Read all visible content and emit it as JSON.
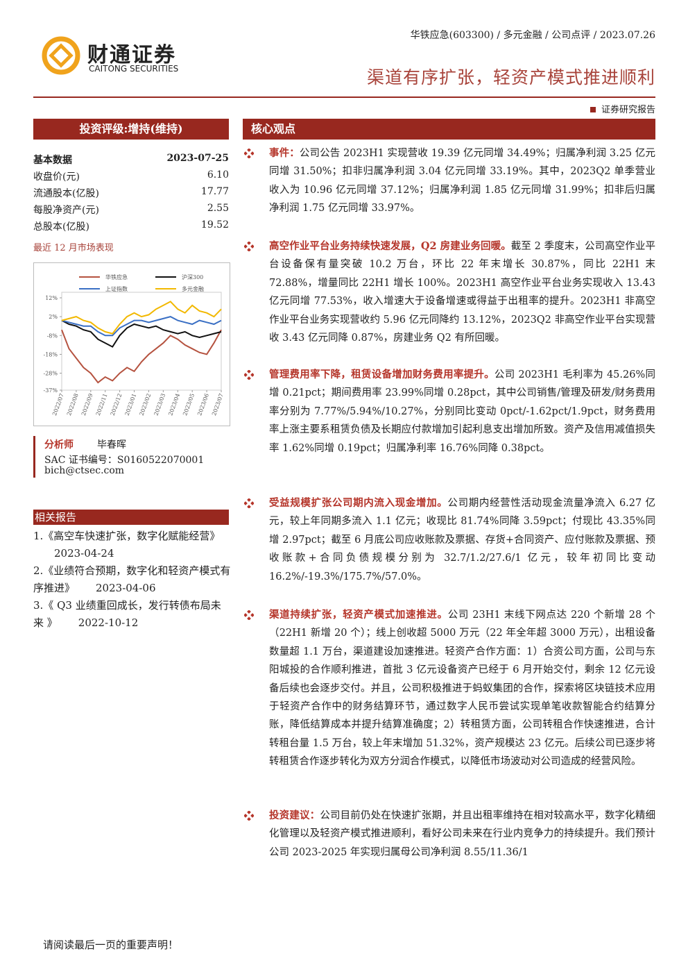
{
  "header": {
    "meta": "华铁应急(603300) / 多元金融 / 公司点评 / 2023.07.26",
    "title": "渠道有序扩张，轻资产模式推进顺利",
    "logo_cn": "财通证券",
    "logo_en": "CAITONG SECURITIES",
    "report_type": "证券研究报告"
  },
  "sidebar": {
    "rating": "投资评级:增持(维持)",
    "basic_data": {
      "title": "基本数据",
      "date": "2023-07-25",
      "rows": [
        [
          "收盘价(元)",
          "6.10"
        ],
        [
          "流通股本(亿股)",
          "17.77"
        ],
        [
          "每股净资产(元)",
          "2.55"
        ],
        [
          "总股本(亿股)",
          "19.52"
        ]
      ]
    },
    "chart_title": "最近 12 月市场表现",
    "analyst": {
      "label": "分析师",
      "name": "毕春晖",
      "sac": "SAC 证书编号：S0160522070001",
      "email": "bich@ctsec.com"
    },
    "related": {
      "title": "相关报告",
      "items": [
        {
          "title": "1.《高空车快速扩张，数字化赋能经营》",
          "date": "2023-04-24"
        },
        {
          "title": "2.《业绩符合预期，数字化和轻资产模式有序推进》",
          "date": "2023-04-06"
        },
        {
          "title": "3.《 Q3 业绩重回成长，发行转债布局未来 》",
          "date": "2022-10-12"
        }
      ]
    }
  },
  "chart_data": {
    "type": "line",
    "categories": [
      "2022/07",
      null,
      "2022/08",
      null,
      "2022/09",
      null,
      "2022/11",
      null,
      "2022/12",
      null,
      "2023/01",
      null,
      "2023/02",
      null,
      "2023/03",
      null,
      "2023/04",
      null,
      "2023/05",
      null,
      "2023/06",
      null,
      "2023/07"
    ],
    "series": [
      {
        "name": "华铁应急",
        "color": "#b5523f",
        "values": [
          -5,
          -15,
          -20,
          -25,
          -28,
          -33,
          -30,
          -32,
          -28,
          -25,
          -27,
          -22,
          -18,
          -15,
          -12,
          -8,
          -10,
          -13,
          -15,
          -17,
          -18,
          -12,
          -5
        ]
      },
      {
        "name": "沪深300",
        "color": "#111111",
        "values": [
          0,
          -2,
          -3,
          -5,
          -6,
          -10,
          -12,
          -14,
          -8,
          -4,
          -2,
          -3,
          -4,
          -3,
          -5,
          -6,
          -7,
          -6,
          -8,
          -9,
          -8,
          -7,
          -6
        ]
      },
      {
        "name": "上证指数",
        "color": "#3a6fc4",
        "values": [
          0,
          -1,
          -2,
          -3,
          -3,
          -6,
          -8,
          -8,
          -4,
          -2,
          0,
          0,
          -1,
          0,
          1,
          2,
          0,
          -1,
          -2,
          0,
          -1,
          -2,
          0
        ]
      },
      {
        "name": "多元金融",
        "color": "#f2b800",
        "values": [
          0,
          1,
          2,
          0,
          -1,
          -4,
          -6,
          -7,
          -2,
          2,
          4,
          2,
          3,
          6,
          8,
          10,
          6,
          4,
          8,
          5,
          4,
          2,
          6
        ]
      }
    ],
    "ylim": [
      -37,
      12
    ],
    "yticks": [
      {
        "value": 12,
        "label": "12%"
      },
      {
        "value": 2,
        "label": "2%"
      },
      {
        "value": -8,
        "label": "-8%"
      },
      {
        "value": -18,
        "label": "-18%"
      },
      {
        "value": -28,
        "label": "-28%"
      },
      {
        "value": -37,
        "label": "-37%"
      }
    ]
  },
  "main": {
    "heading": "核心观点",
    "sections": [
      {
        "lead": "事件：",
        "text": "公司公告 2023H1 实现营收 19.39 亿元同增 34.49%；归属净利润 3.25 亿元同增 31.50%；扣非归属净利润 3.04 亿元同增 33.19%。其中，2023Q2 单季营业收入为 10.96 亿元同增 37.12%；归属净利润 1.85 亿元同增 31.99%；扣非后归属净利润 1.75 亿元同增 33.97%。"
      },
      {
        "lead": "高空作业平台业务持续快速发展，Q2 房建业务回暖。",
        "text": "截至 2 季度末，公司高空作业平台设备保有量突破 10.2 万台，环比 22 年末增长 30.87%，同比 22H1 末 72.88%，增量同比 22H1 增长 100%。2023H1 高空作业平台业务实现收入 13.43 亿元同增 77.53%，收入增速大于设备增速或得益于出租率的提升。2023H1 非高空作业平台业务实现营收约 5.96 亿元同降约 13.12%，2023Q2 非高空作业平台实现营收 3.43 亿元同降 0.87%，房建业务 Q2 有所回暖。"
      },
      {
        "lead": "管理费用率下降，租赁设备增加财务费用率提升。",
        "text": "公司 2023H1 毛利率为 45.26%同增 0.21pct；期间费用率 23.99%同增 0.28pct，其中公司销售/管理及研发/财务费用率分别为 7.77%/5.94%/10.27%，分别同比变动 0pct/-1.62pct/1.9pct，财务费用率上涨主要系租赁负债及长期应付款增加引起利息支出增加所致。资产及信用减值损失率 1.62%同增 0.19pct；归属净利率 16.76%同降 0.38pct。"
      },
      {
        "lead": "受益规模扩张公司期内流入现金增加。",
        "text": "公司期内经营性活动现金流量净流入 6.27 亿元，较上年同期多流入 1.1 亿元；收现比 81.74%同降 3.59pct；付现比 43.35%同增 2.97pct；截至 6 月底公司应收账款及票据、存货+合同资产、应付账款及票据、预收账款+合同负债规模分别为 32.7/1.2/27.6/1 亿元，较年初同比变动 16.2%/-19.3%/175.7%/57.0%。"
      },
      {
        "lead": "渠道持续扩张，轻资产模式加速推进。",
        "text": "公司 23H1 末线下网点达 220 个新增 28 个（22H1 新增 20 个）；线上创收超 5000 万元（22 年全年超 3000 万元），出租设备数量超 1.1 万台，渠道建设加速推进。轻资产合作方面：1）合资公司方面，公司与东阳城投的合作顺利推进，首批 3 亿元设备资产已经于 6 月开始交付，剩余 12 亿元设备后续也会逐步交付。并且，公司积极推进于蚂蚁集团的合作，探索将区块链技术应用于轻资产合作中的财务结算环节，通过数字人民币尝试实现单笔收款智能合约结算分账，降低结算成本并提升结算准确度；2）转租赁方面，公司转租合作快速推进，合计转租台量 1.5 万台，较上年末增加 51.32%，资产规模达 23 亿元。后续公司已逐步将转租赁合作逐步转化为双方分润合作模式，以降低市场波动对公司造成的经营风险。"
      },
      {
        "lead": "投资建议：",
        "text": "公司目前仍处在快速扩张期，并且出租率维持在相对较高水平，数字化精细化管理以及轻资产模式推进顺利，看好公司未来在行业内竞争力的持续提升。我们预计公司 2023-2025 年实现归属母公司净利润 8.55/11.36/1"
      }
    ]
  },
  "footer": "请阅读最后一页的重要声明！"
}
